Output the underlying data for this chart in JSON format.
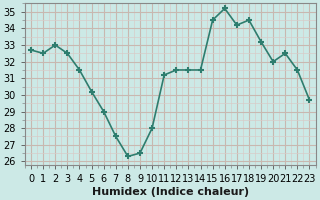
{
  "x": [
    0,
    1,
    2,
    3,
    4,
    5,
    6,
    7,
    8,
    9,
    10,
    11,
    12,
    13,
    14,
    15,
    16,
    17,
    18,
    19,
    20,
    21,
    22,
    23
  ],
  "y": [
    32.7,
    32.5,
    33.0,
    32.5,
    31.5,
    30.2,
    29.0,
    27.5,
    26.3,
    26.5,
    28.0,
    31.2,
    31.5,
    31.5,
    31.5,
    34.5,
    35.2,
    34.2,
    34.5,
    33.2,
    32.0,
    32.5,
    31.5,
    29.7
  ],
  "line_color": "#2e7d6e",
  "marker": "+",
  "markersize": 5,
  "markeredgewidth": 1.5,
  "linewidth": 1.2,
  "background_color": "#cce9e6",
  "grid_major_color": "#c8b8b0",
  "grid_minor_color": "#d8ccc8",
  "xlabel": "Humidex (Indice chaleur)",
  "xlabel_fontsize": 8,
  "ylim": [
    25.8,
    35.5
  ],
  "yticks": [
    26,
    27,
    28,
    29,
    30,
    31,
    32,
    33,
    34,
    35
  ],
  "xtick_labels": [
    "0",
    "1",
    "2",
    "3",
    "4",
    "5",
    "6",
    "7",
    "8",
    "9",
    "10",
    "11",
    "12",
    "13",
    "14",
    "15",
    "16",
    "17",
    "18",
    "19",
    "20",
    "21",
    "22",
    "23"
  ],
  "tick_fontsize": 7,
  "spine_color": "#888888"
}
